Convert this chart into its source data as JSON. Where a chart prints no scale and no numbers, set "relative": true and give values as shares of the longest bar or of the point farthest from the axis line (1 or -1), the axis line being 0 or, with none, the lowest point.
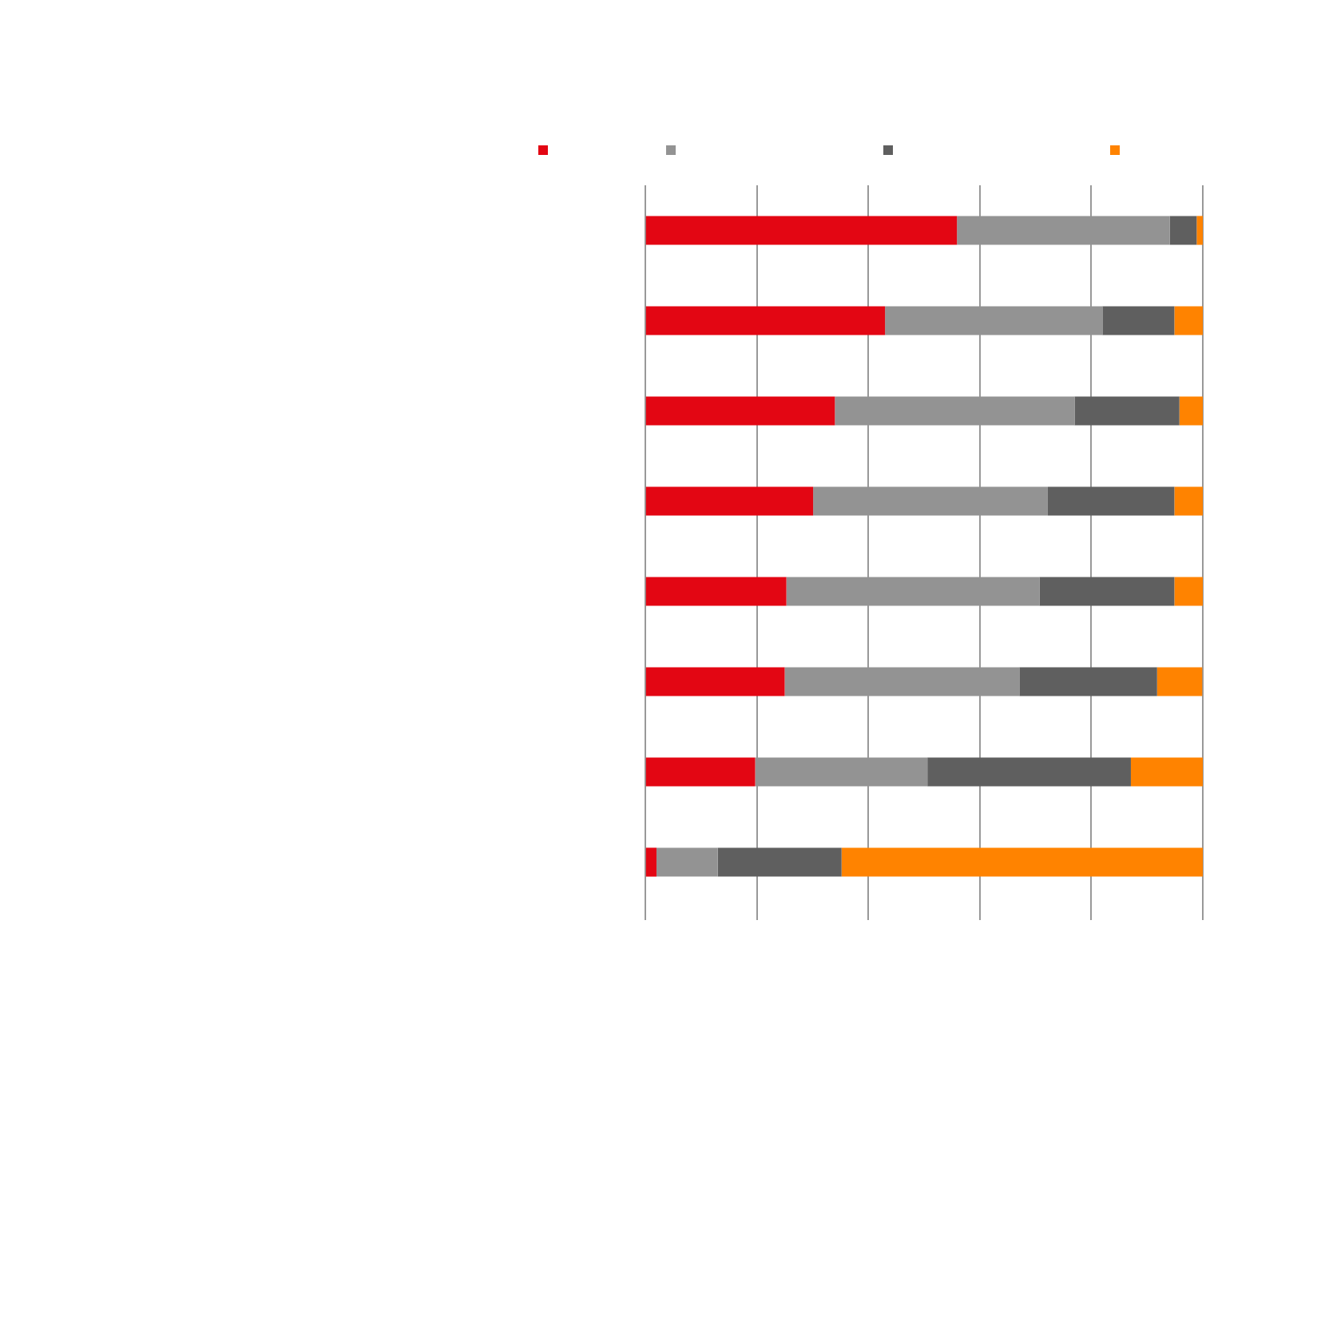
{
  "chart_data": {
    "type": "bar",
    "orientation": "horizontal",
    "stacked": true,
    "relative": true,
    "grid": "x",
    "categories": [
      null,
      null,
      null,
      null,
      null,
      null,
      null,
      null
    ],
    "series": [
      {
        "color": "#e30613",
        "values": [
          0.559,
          0.43,
          0.34,
          0.301,
          0.253,
          0.25,
          0.197,
          0.02
        ]
      },
      {
        "color": "#939393",
        "values": [
          0.382,
          0.39,
          0.43,
          0.421,
          0.454,
          0.421,
          0.309,
          0.11
        ]
      },
      {
        "color": "#5f5f5f",
        "values": [
          0.048,
          0.129,
          0.188,
          0.227,
          0.242,
          0.247,
          0.365,
          0.222
        ]
      },
      {
        "color": "#ff8300",
        "values": [
          0.011,
          0.051,
          0.042,
          0.051,
          0.051,
          0.081,
          0.129,
          0.648
        ]
      }
    ]
  }
}
